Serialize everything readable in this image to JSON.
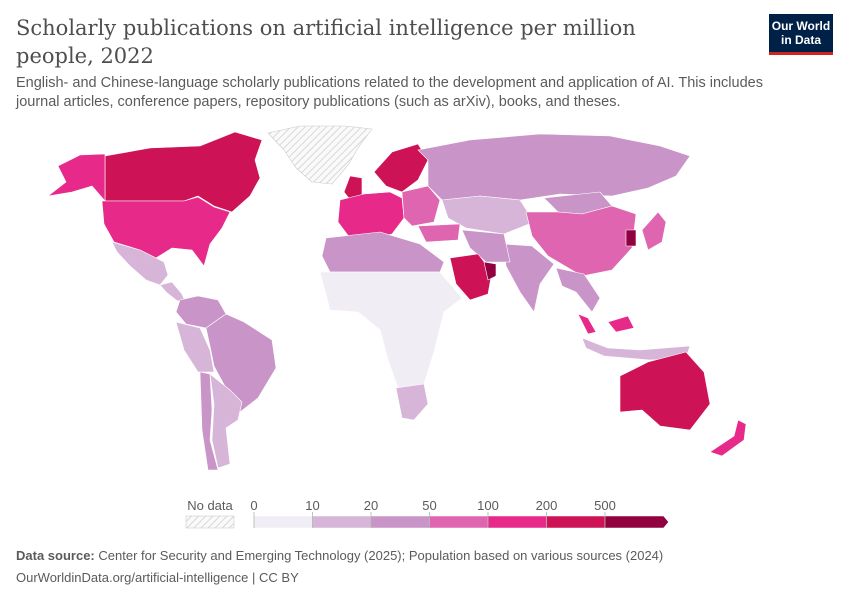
{
  "header": {
    "title": "Scholarly publications on artificial intelligence per million people, 2022",
    "subtitle": "English- and Chinese-language scholarly publications related to the development and application of AI. This includes journal articles, conference papers, repository publications (such as arXiv), books, and theses.",
    "logo_line1": "Our World",
    "logo_line2": "in Data"
  },
  "chart_data": {
    "type": "map",
    "title": "Scholarly publications on artificial intelligence per million people, 2022",
    "legend": {
      "placement": "bottom",
      "no_data_label": "No data",
      "no_data_pattern": "hatched grey",
      "ticks": [
        "0",
        "10",
        "20",
        "50",
        "100",
        "200",
        "500"
      ],
      "bins": [
        {
          "range": "0-10",
          "color": "#f1edf5"
        },
        {
          "range": "10-20",
          "color": "#d7b5d8"
        },
        {
          "range": "20-50",
          "color": "#c994c7"
        },
        {
          "range": "50-100",
          "color": "#df65b0"
        },
        {
          "range": "100-200",
          "color": "#e7298a"
        },
        {
          "range": "200-500",
          "color": "#ce1256"
        },
        {
          "range": "500+",
          "color": "#91003f"
        }
      ]
    },
    "regions": {
      "greenland": "no data",
      "canada": "200-500",
      "alaska": "100-200",
      "usa": "100-200",
      "mexico": "10-20",
      "central-america": "10-20",
      "colombia-venezuela": "20-50",
      "brazil": "20-50",
      "peru-bolivia": "10-20",
      "chile": "20-50",
      "argentina": "10-20",
      "uk": "200-500",
      "scandinavia": "200-500",
      "western-europe": "100-200",
      "eastern-europe": "50-100",
      "russia": "20-50",
      "central-asia": "10-20",
      "mongolia": "20-50",
      "china": "50-100",
      "india": "20-50",
      "iran": "20-50",
      "turkey": "50-100",
      "saudi-arabia": "200-500",
      "uae": "500+",
      "north-africa": "20-50",
      "sub-saharan-africa": "0-10",
      "south-africa": "10-20",
      "japan": "50-100",
      "south-korea": "500+",
      "mainland-southeast-asia": "20-50",
      "malaysia": "100-200",
      "indonesia": "10-20",
      "australia": "200-500",
      "new-zealand": "100-200"
    }
  },
  "footer": {
    "source_label": "Data source:",
    "source_text": "Center for Security and Emerging Technology (2025); Population based on various sources (2024)",
    "url": "OurWorldinData.org/artificial-intelligence | CC BY"
  }
}
